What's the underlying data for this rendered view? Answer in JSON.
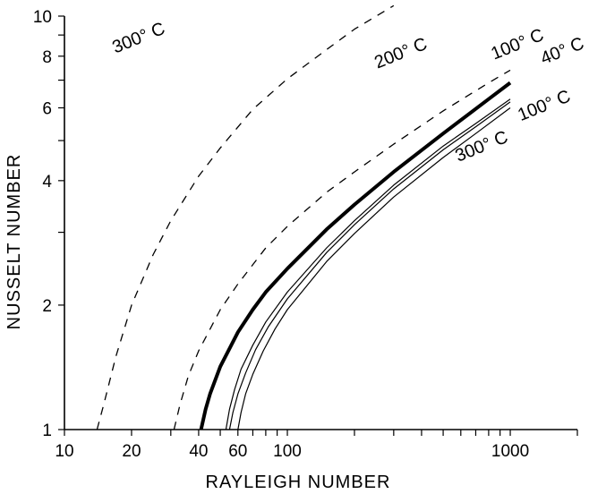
{
  "chart_data": {
    "type": "line",
    "xlabel": "RAYLEIGH NUMBER",
    "ylabel": "NUSSELT NUMBER",
    "xscale": "log",
    "yscale": "log",
    "xlim": [
      10,
      2000
    ],
    "ylim": [
      1,
      10
    ],
    "x_ticks": [
      10,
      20,
      40,
      60,
      100,
      1000
    ],
    "y_ticks": [
      1,
      2,
      4,
      6,
      8,
      10
    ],
    "grid": false,
    "legend": "none",
    "series": [
      {
        "name": "300° C",
        "style": "dashed",
        "stroke_width": 1.3,
        "label_angle": -22,
        "x": [
          14,
          15,
          17,
          20,
          25,
          30,
          40,
          50,
          70,
          100,
          150,
          200,
          300
        ],
        "y": [
          1.0,
          1.15,
          1.5,
          2.0,
          2.65,
          3.2,
          4.1,
          4.8,
          5.95,
          7.05,
          8.3,
          9.3,
          10.6
        ]
      },
      {
        "name": "200° C",
        "style": "dashed",
        "stroke_width": 1.3,
        "label_angle": -22,
        "x": [
          31,
          33,
          36,
          40,
          50,
          60,
          80,
          100,
          150,
          200,
          300,
          500,
          800,
          1000
        ],
        "y": [
          1.0,
          1.15,
          1.35,
          1.55,
          1.95,
          2.25,
          2.75,
          3.1,
          3.75,
          4.2,
          4.9,
          5.9,
          6.9,
          7.4
        ]
      },
      {
        "name": "100° C",
        "style": "solid",
        "stroke_width": 4,
        "label_angle": -22,
        "x": [
          41,
          43,
          45,
          50,
          60,
          70,
          80,
          100,
          150,
          200,
          300,
          500,
          800,
          1000
        ],
        "y": [
          1.0,
          1.12,
          1.22,
          1.42,
          1.72,
          1.95,
          2.15,
          2.45,
          3.05,
          3.5,
          4.2,
          5.2,
          6.3,
          6.9
        ]
      },
      {
        "name": "40° C",
        "style": "solid",
        "stroke_width": 1.2,
        "label_angle": -22,
        "x": [
          53,
          55,
          58,
          62,
          70,
          80,
          100,
          150,
          200,
          300,
          500,
          700,
          1000
        ],
        "y": [
          1.0,
          1.12,
          1.25,
          1.4,
          1.6,
          1.82,
          2.15,
          2.75,
          3.2,
          3.9,
          4.85,
          5.5,
          6.3
        ]
      },
      {
        "name": "100° C",
        "style": "solid",
        "stroke_width": 1.2,
        "label_angle": -22,
        "x": [
          55,
          57,
          60,
          65,
          72,
          82,
          100,
          150,
          200,
          300,
          500,
          700,
          1000
        ],
        "y": [
          1.0,
          1.1,
          1.22,
          1.37,
          1.56,
          1.77,
          2.07,
          2.68,
          3.13,
          3.82,
          4.75,
          5.4,
          6.2
        ]
      },
      {
        "name": "300° C",
        "style": "solid",
        "stroke_width": 1.2,
        "label_angle": -22,
        "x": [
          60,
          62,
          65,
          70,
          78,
          88,
          100,
          150,
          200,
          300,
          500,
          700,
          1000
        ],
        "y": [
          1.0,
          1.1,
          1.22,
          1.36,
          1.55,
          1.75,
          1.95,
          2.55,
          2.98,
          3.65,
          4.55,
          5.2,
          6.0
        ]
      }
    ],
    "labels": [
      {
        "text": "300° C",
        "x": 22,
        "y": 8.6
      },
      {
        "text": "200° C",
        "x": 330,
        "y": 7.9
      },
      {
        "text": "100° C",
        "x": 1100,
        "y": 8.3
      },
      {
        "text": "40° C",
        "x": 1750,
        "y": 8.0
      },
      {
        "text": "100° C",
        "x": 1450,
        "y": 5.9
      },
      {
        "text": "300° C",
        "x": 760,
        "y": 4.7
      }
    ]
  }
}
